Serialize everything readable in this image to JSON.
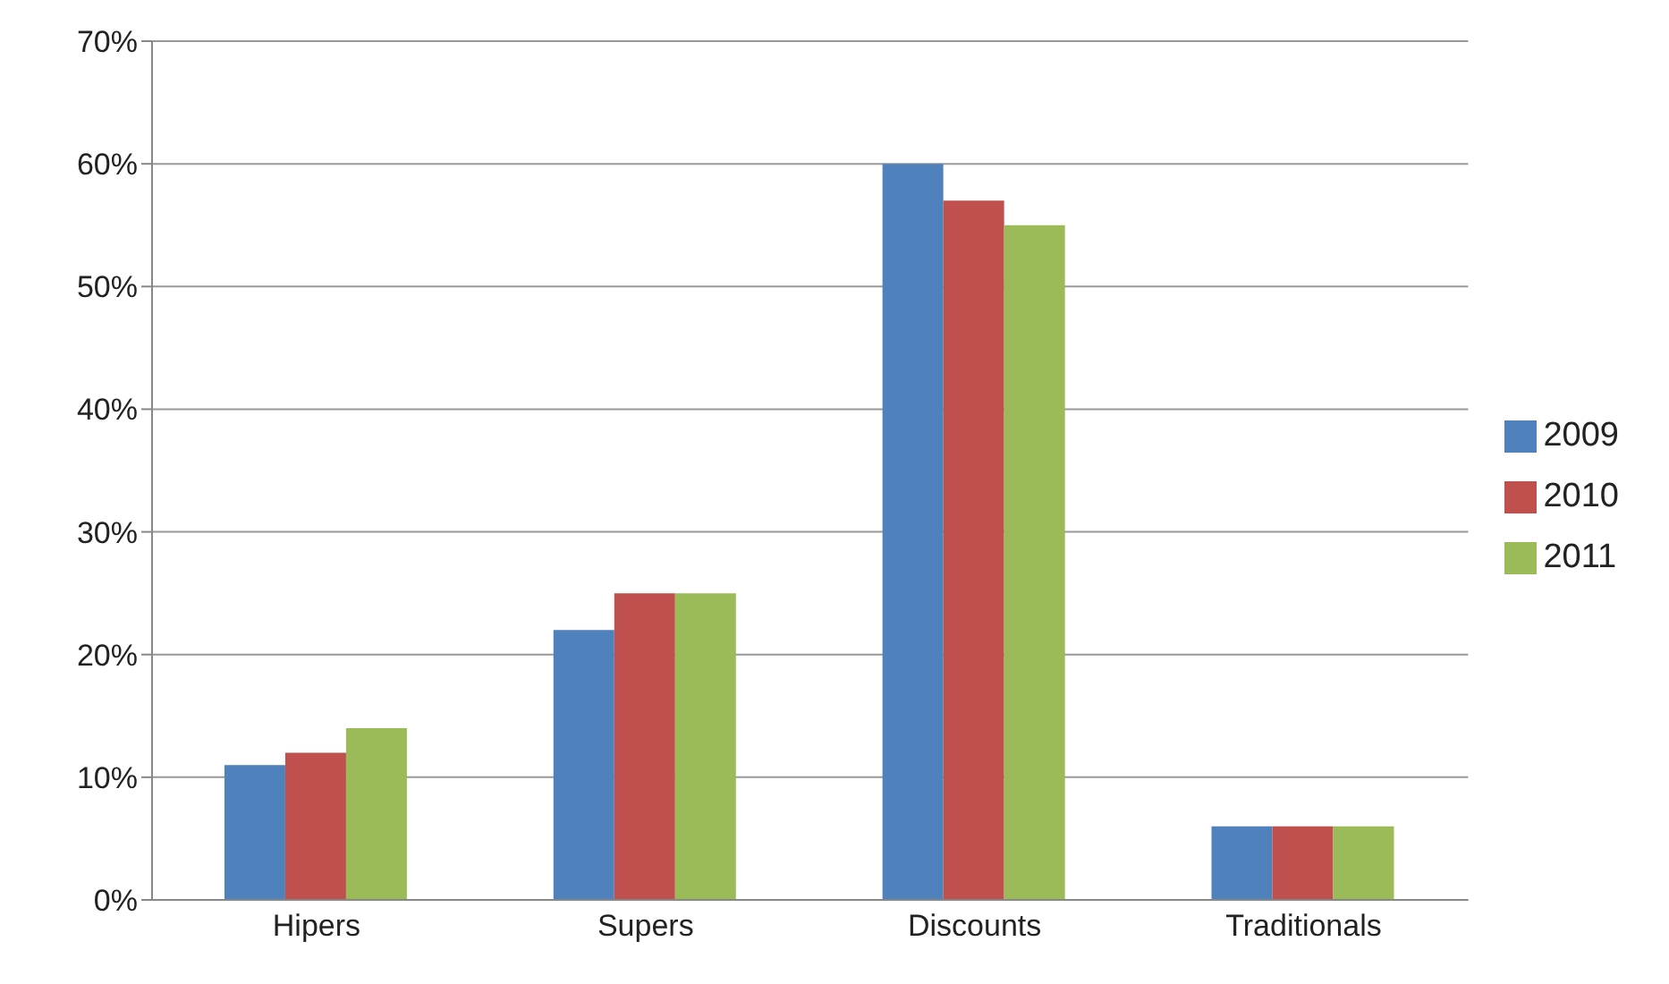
{
  "chart_data": {
    "type": "bar",
    "categories": [
      "Hipers",
      "Supers",
      "Discounts",
      "Traditionals"
    ],
    "series": [
      {
        "name": "2009",
        "color": "#4f81bd",
        "values": [
          11,
          22,
          60,
          6
        ]
      },
      {
        "name": "2010",
        "color": "#c0504d",
        "values": [
          12,
          25,
          57,
          6
        ]
      },
      {
        "name": "2011",
        "color": "#9bbb59",
        "values": [
          14,
          25,
          55,
          6
        ]
      }
    ],
    "ylim": [
      0,
      70
    ],
    "yticks": [
      {
        "value": 0,
        "label": "0%"
      },
      {
        "value": 10,
        "label": "10%"
      },
      {
        "value": 20,
        "label": "20%"
      },
      {
        "value": 30,
        "label": "30%"
      },
      {
        "value": 40,
        "label": "40%"
      },
      {
        "value": 50,
        "label": "50%"
      },
      {
        "value": 60,
        "label": "60%"
      },
      {
        "value": 70,
        "label": "70%"
      }
    ],
    "grid": "y",
    "legend": "right"
  }
}
